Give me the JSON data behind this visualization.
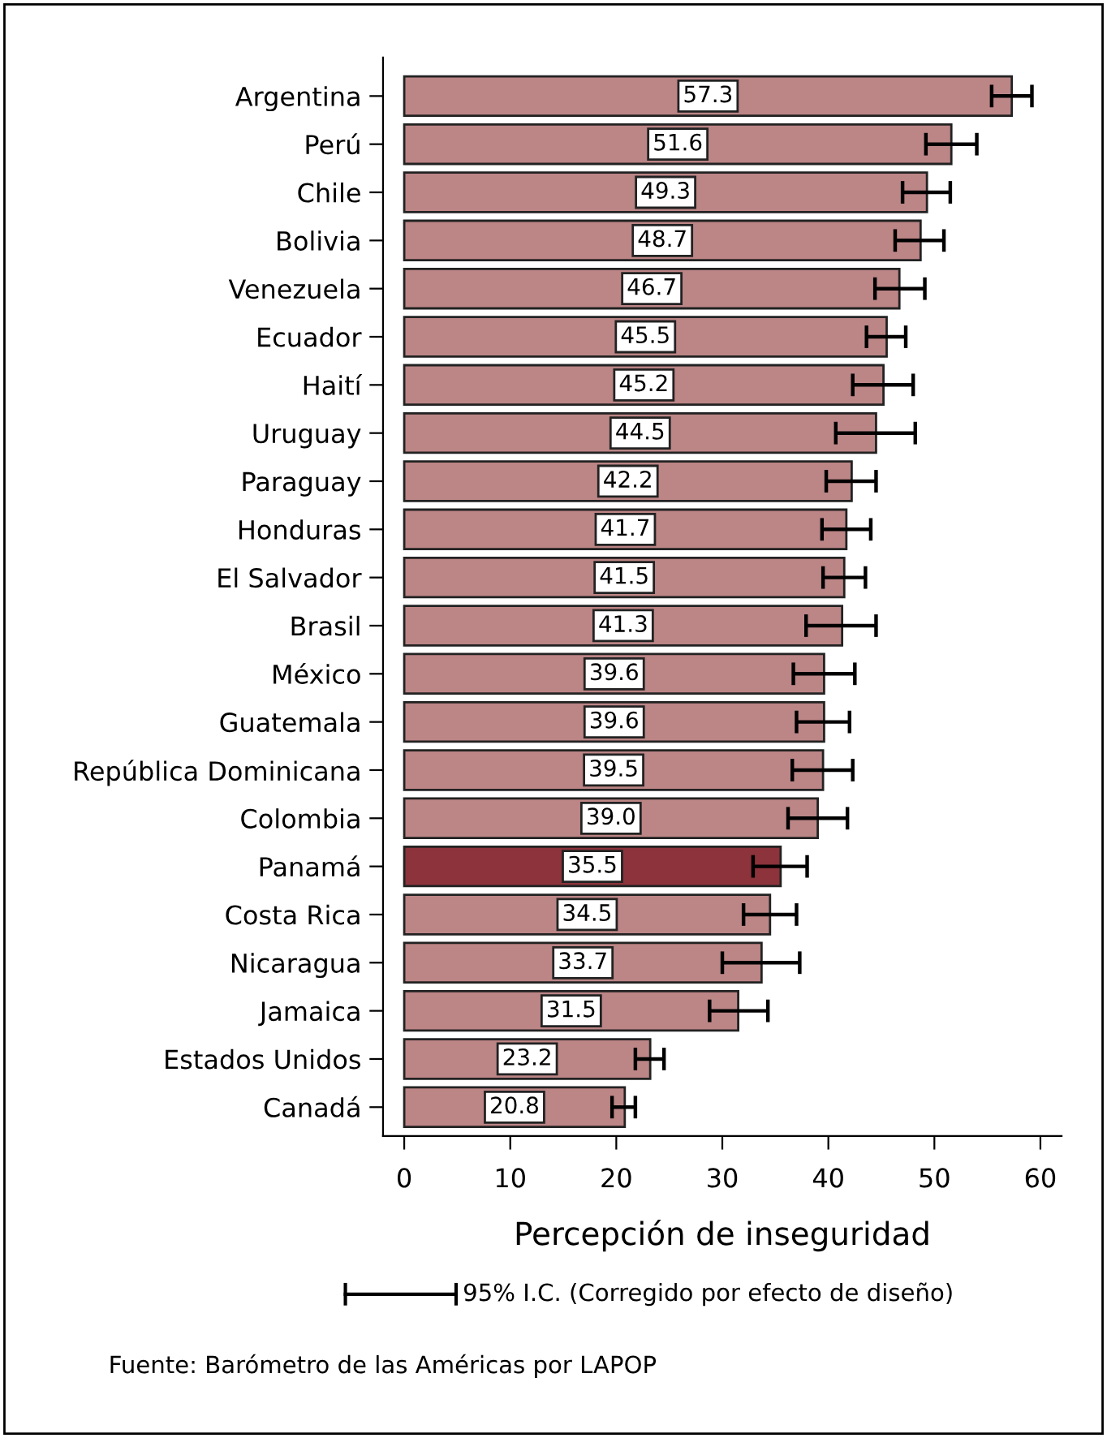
{
  "chart_data": {
    "type": "bar",
    "orientation": "horizontal",
    "xlabel": "Percepción de inseguridad",
    "categories": [
      "Argentina",
      "Perú",
      "Chile",
      "Bolivia",
      "Venezuela",
      "Ecuador",
      "Haití",
      "Uruguay",
      "Paraguay",
      "Honduras",
      "El Salvador",
      "Brasil",
      "México",
      "Guatemala",
      "República Dominicana",
      "Colombia",
      "Panamá",
      "Costa Rica",
      "Nicaragua",
      "Jamaica",
      "Estados Unidos",
      "Canadá"
    ],
    "values": [
      57.3,
      51.6,
      49.3,
      48.7,
      46.7,
      45.5,
      45.2,
      44.5,
      42.2,
      41.7,
      41.5,
      41.3,
      39.6,
      39.6,
      39.5,
      39.0,
      35.5,
      34.5,
      33.7,
      31.5,
      23.2,
      20.8
    ],
    "errors": [
      [
        55.4,
        59.2
      ],
      [
        49.2,
        54.0
      ],
      [
        47.0,
        51.5
      ],
      [
        46.3,
        50.9
      ],
      [
        44.4,
        49.1
      ],
      [
        43.6,
        47.3
      ],
      [
        42.3,
        48.0
      ],
      [
        40.7,
        48.2
      ],
      [
        39.8,
        44.5
      ],
      [
        39.4,
        44.0
      ],
      [
        39.5,
        43.5
      ],
      [
        37.9,
        44.5
      ],
      [
        36.7,
        42.5
      ],
      [
        37.0,
        42.0
      ],
      [
        36.6,
        42.3
      ],
      [
        36.2,
        41.8
      ],
      [
        32.9,
        38.0
      ],
      [
        32.0,
        37.0
      ],
      [
        30.0,
        37.3
      ],
      [
        28.8,
        34.3
      ],
      [
        21.8,
        24.5
      ],
      [
        19.6,
        21.8
      ]
    ],
    "colors": [
      "#bc8586",
      "#bc8586",
      "#bc8586",
      "#bc8586",
      "#bc8586",
      "#bc8586",
      "#bc8586",
      "#bc8586",
      "#bc8586",
      "#bc8586",
      "#bc8586",
      "#bc8586",
      "#bc8586",
      "#bc8586",
      "#bc8586",
      "#bc8586",
      "#8c333b",
      "#bc8586",
      "#bc8586",
      "#bc8586",
      "#bc8586",
      "#bc8586"
    ],
    "value_labels": [
      "57.3",
      "51.6",
      "49.3",
      "48.7",
      "46.7",
      "45.5",
      "45.2",
      "44.5",
      "42.2",
      "41.7",
      "41.5",
      "41.3",
      "39.6",
      "39.6",
      "39.5",
      "39.0",
      "35.5",
      "34.5",
      "33.7",
      "31.5",
      "23.2",
      "20.8"
    ],
    "xlim": [
      -2,
      62
    ],
    "xticks": [
      0,
      10,
      20,
      30,
      40,
      50,
      60
    ],
    "grid": false,
    "legend": false,
    "annotations": [
      "95% I.C. (Corregido por efecto de diseño)",
      "Fuente: Barómetro de las Américas por LAPOP"
    ]
  }
}
